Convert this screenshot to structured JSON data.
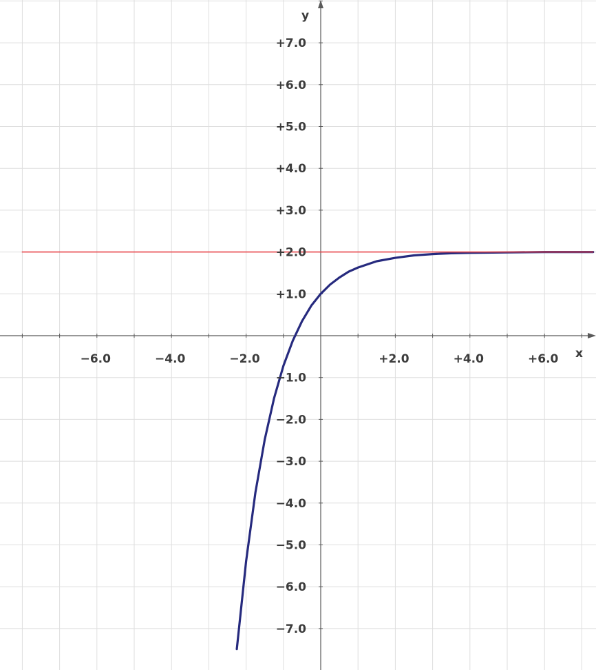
{
  "chart_data": {
    "type": "line",
    "title": "",
    "xlabel": "x",
    "ylabel": "y",
    "xlim": [
      -8,
      7.3
    ],
    "ylim": [
      -8,
      8.0
    ],
    "grid": true,
    "x_tick_labels": [
      {
        "value": -6,
        "label": "−6.0"
      },
      {
        "value": -4,
        "label": "−4.0"
      },
      {
        "value": -2,
        "label": "−2.0"
      },
      {
        "value": 2,
        "label": "+2.0"
      },
      {
        "value": 4,
        "label": "+4.0"
      },
      {
        "value": 6,
        "label": "+6.0"
      }
    ],
    "y_tick_labels": [
      {
        "value": 7,
        "label": "+7.0"
      },
      {
        "value": 6,
        "label": "+6.0"
      },
      {
        "value": 5,
        "label": "+5.0"
      },
      {
        "value": 4,
        "label": "+4.0"
      },
      {
        "value": 3,
        "label": "+3.0"
      },
      {
        "value": 2,
        "label": "+2.0"
      },
      {
        "value": 1,
        "label": "+1.0"
      },
      {
        "value": -1,
        "label": "−1.0"
      },
      {
        "value": -2,
        "label": "−2.0"
      },
      {
        "value": -3,
        "label": "−3.0"
      },
      {
        "value": -4,
        "label": "−4.0"
      },
      {
        "value": -5,
        "label": "−5.0"
      },
      {
        "value": -6,
        "label": "−6.0"
      },
      {
        "value": -7,
        "label": "−7.0"
      }
    ],
    "series": [
      {
        "color": "#262a7e",
        "x": [
          -2.25,
          -2.0,
          -1.75,
          -1.5,
          -1.25,
          -1.0,
          -0.75,
          -0.5,
          -0.25,
          0.0,
          0.25,
          0.5,
          0.75,
          1.0,
          1.5,
          2.0,
          2.5,
          3.0,
          3.5,
          4.0,
          5.0,
          6.0,
          7.3
        ],
        "y": [
          -7.49,
          -5.39,
          -3.75,
          -2.48,
          -1.49,
          -0.72,
          -0.12,
          0.35,
          0.72,
          1.0,
          1.22,
          1.39,
          1.53,
          1.63,
          1.78,
          1.86,
          1.92,
          1.95,
          1.97,
          1.98,
          1.99,
          2.0,
          2.0
        ]
      },
      {
        "color": "#e8464b",
        "x": [
          -8,
          7.3
        ],
        "y": [
          2.0,
          2.0
        ]
      }
    ]
  }
}
